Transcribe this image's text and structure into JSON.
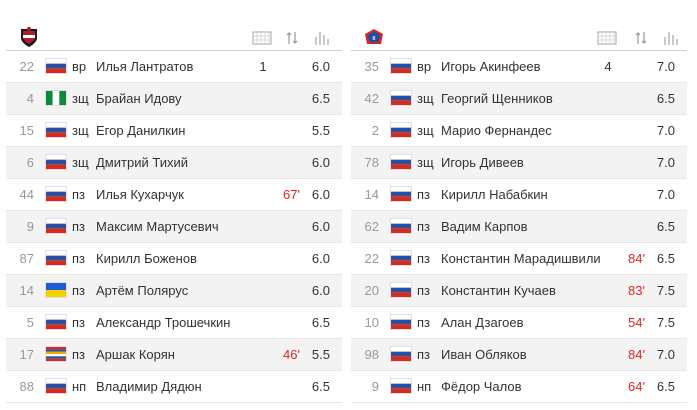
{
  "teams": [
    {
      "players": [
        {
          "number": "22",
          "flag": "russia",
          "position": "вр",
          "name": "Илья Лантратов",
          "goals": "1",
          "sub": "",
          "rating": "6.0"
        },
        {
          "number": "4",
          "flag": "nigeria",
          "position": "зщ",
          "name": "Брайан Идову",
          "goals": "",
          "sub": "",
          "rating": "6.5"
        },
        {
          "number": "15",
          "flag": "russia",
          "position": "зщ",
          "name": "Егор Данилкин",
          "goals": "",
          "sub": "",
          "rating": "5.5"
        },
        {
          "number": "6",
          "flag": "russia",
          "position": "зщ",
          "name": "Дмитрий Тихий",
          "goals": "",
          "sub": "",
          "rating": "6.0"
        },
        {
          "number": "44",
          "flag": "russia",
          "position": "пз",
          "name": "Илья Кухарчук",
          "goals": "",
          "sub": "67'",
          "rating": "6.0"
        },
        {
          "number": "9",
          "flag": "russia",
          "position": "пз",
          "name": "Максим Мартусевич",
          "goals": "",
          "sub": "",
          "rating": "6.0"
        },
        {
          "number": "87",
          "flag": "russia",
          "position": "пз",
          "name": "Кирилл Боженов",
          "goals": "",
          "sub": "",
          "rating": "6.0"
        },
        {
          "number": "14",
          "flag": "ukraine",
          "position": "пз",
          "name": "Артём Полярус",
          "goals": "",
          "sub": "",
          "rating": "6.0"
        },
        {
          "number": "5",
          "flag": "russia",
          "position": "пз",
          "name": "Александр Трошечкин",
          "goals": "",
          "sub": "",
          "rating": "6.5"
        },
        {
          "number": "17",
          "flag": "armenia-russia",
          "position": "пз",
          "name": "Аршак Корян",
          "goals": "",
          "sub": "46'",
          "rating": "5.5"
        },
        {
          "number": "88",
          "flag": "russia",
          "position": "нп",
          "name": "Владимир Дядюн",
          "goals": "",
          "sub": "",
          "rating": "6.5"
        }
      ]
    },
    {
      "players": [
        {
          "number": "35",
          "flag": "russia",
          "position": "вр",
          "name": "Игорь Акинфеев",
          "goals": "4",
          "sub": "",
          "rating": "7.0"
        },
        {
          "number": "42",
          "flag": "russia",
          "position": "зщ",
          "name": "Георгий Щенников",
          "goals": "",
          "sub": "",
          "rating": "6.5"
        },
        {
          "number": "2",
          "flag": "russia",
          "position": "зщ",
          "name": "Марио Фернандес",
          "goals": "",
          "sub": "",
          "rating": "7.0"
        },
        {
          "number": "78",
          "flag": "russia",
          "position": "зщ",
          "name": "Игорь Дивеев",
          "goals": "",
          "sub": "",
          "rating": "7.0"
        },
        {
          "number": "14",
          "flag": "russia",
          "position": "пз",
          "name": "Кирилл Набабкин",
          "goals": "",
          "sub": "",
          "rating": "7.0"
        },
        {
          "number": "62",
          "flag": "russia",
          "position": "пз",
          "name": "Вадим Карпов",
          "goals": "",
          "sub": "",
          "rating": "6.5"
        },
        {
          "number": "22",
          "flag": "russia",
          "position": "пз",
          "name": "Константин Марадишвили",
          "goals": "",
          "sub": "84'",
          "rating": "6.5"
        },
        {
          "number": "20",
          "flag": "russia",
          "position": "пз",
          "name": "Константин Кучаев",
          "goals": "",
          "sub": "83'",
          "rating": "7.5"
        },
        {
          "number": "10",
          "flag": "russia",
          "position": "пз",
          "name": "Алан Дзагоев",
          "goals": "",
          "sub": "54'",
          "rating": "7.5"
        },
        {
          "number": "98",
          "flag": "russia",
          "position": "пз",
          "name": "Иван Обляков",
          "goals": "",
          "sub": "84'",
          "rating": "7.0"
        },
        {
          "number": "9",
          "flag": "russia",
          "position": "нп",
          "name": "Фёдор Чалов",
          "goals": "",
          "sub": "64'",
          "rating": "6.5"
        }
      ]
    }
  ],
  "header_icons": [
    "crest-icon",
    "goal-net-icon",
    "substitution-arrows-icon",
    "rating-bars-icon"
  ],
  "colors": {
    "sub_minute": "#e02424",
    "alt_row": "#f3f3f3",
    "text": "#333333",
    "muted": "#999999"
  }
}
